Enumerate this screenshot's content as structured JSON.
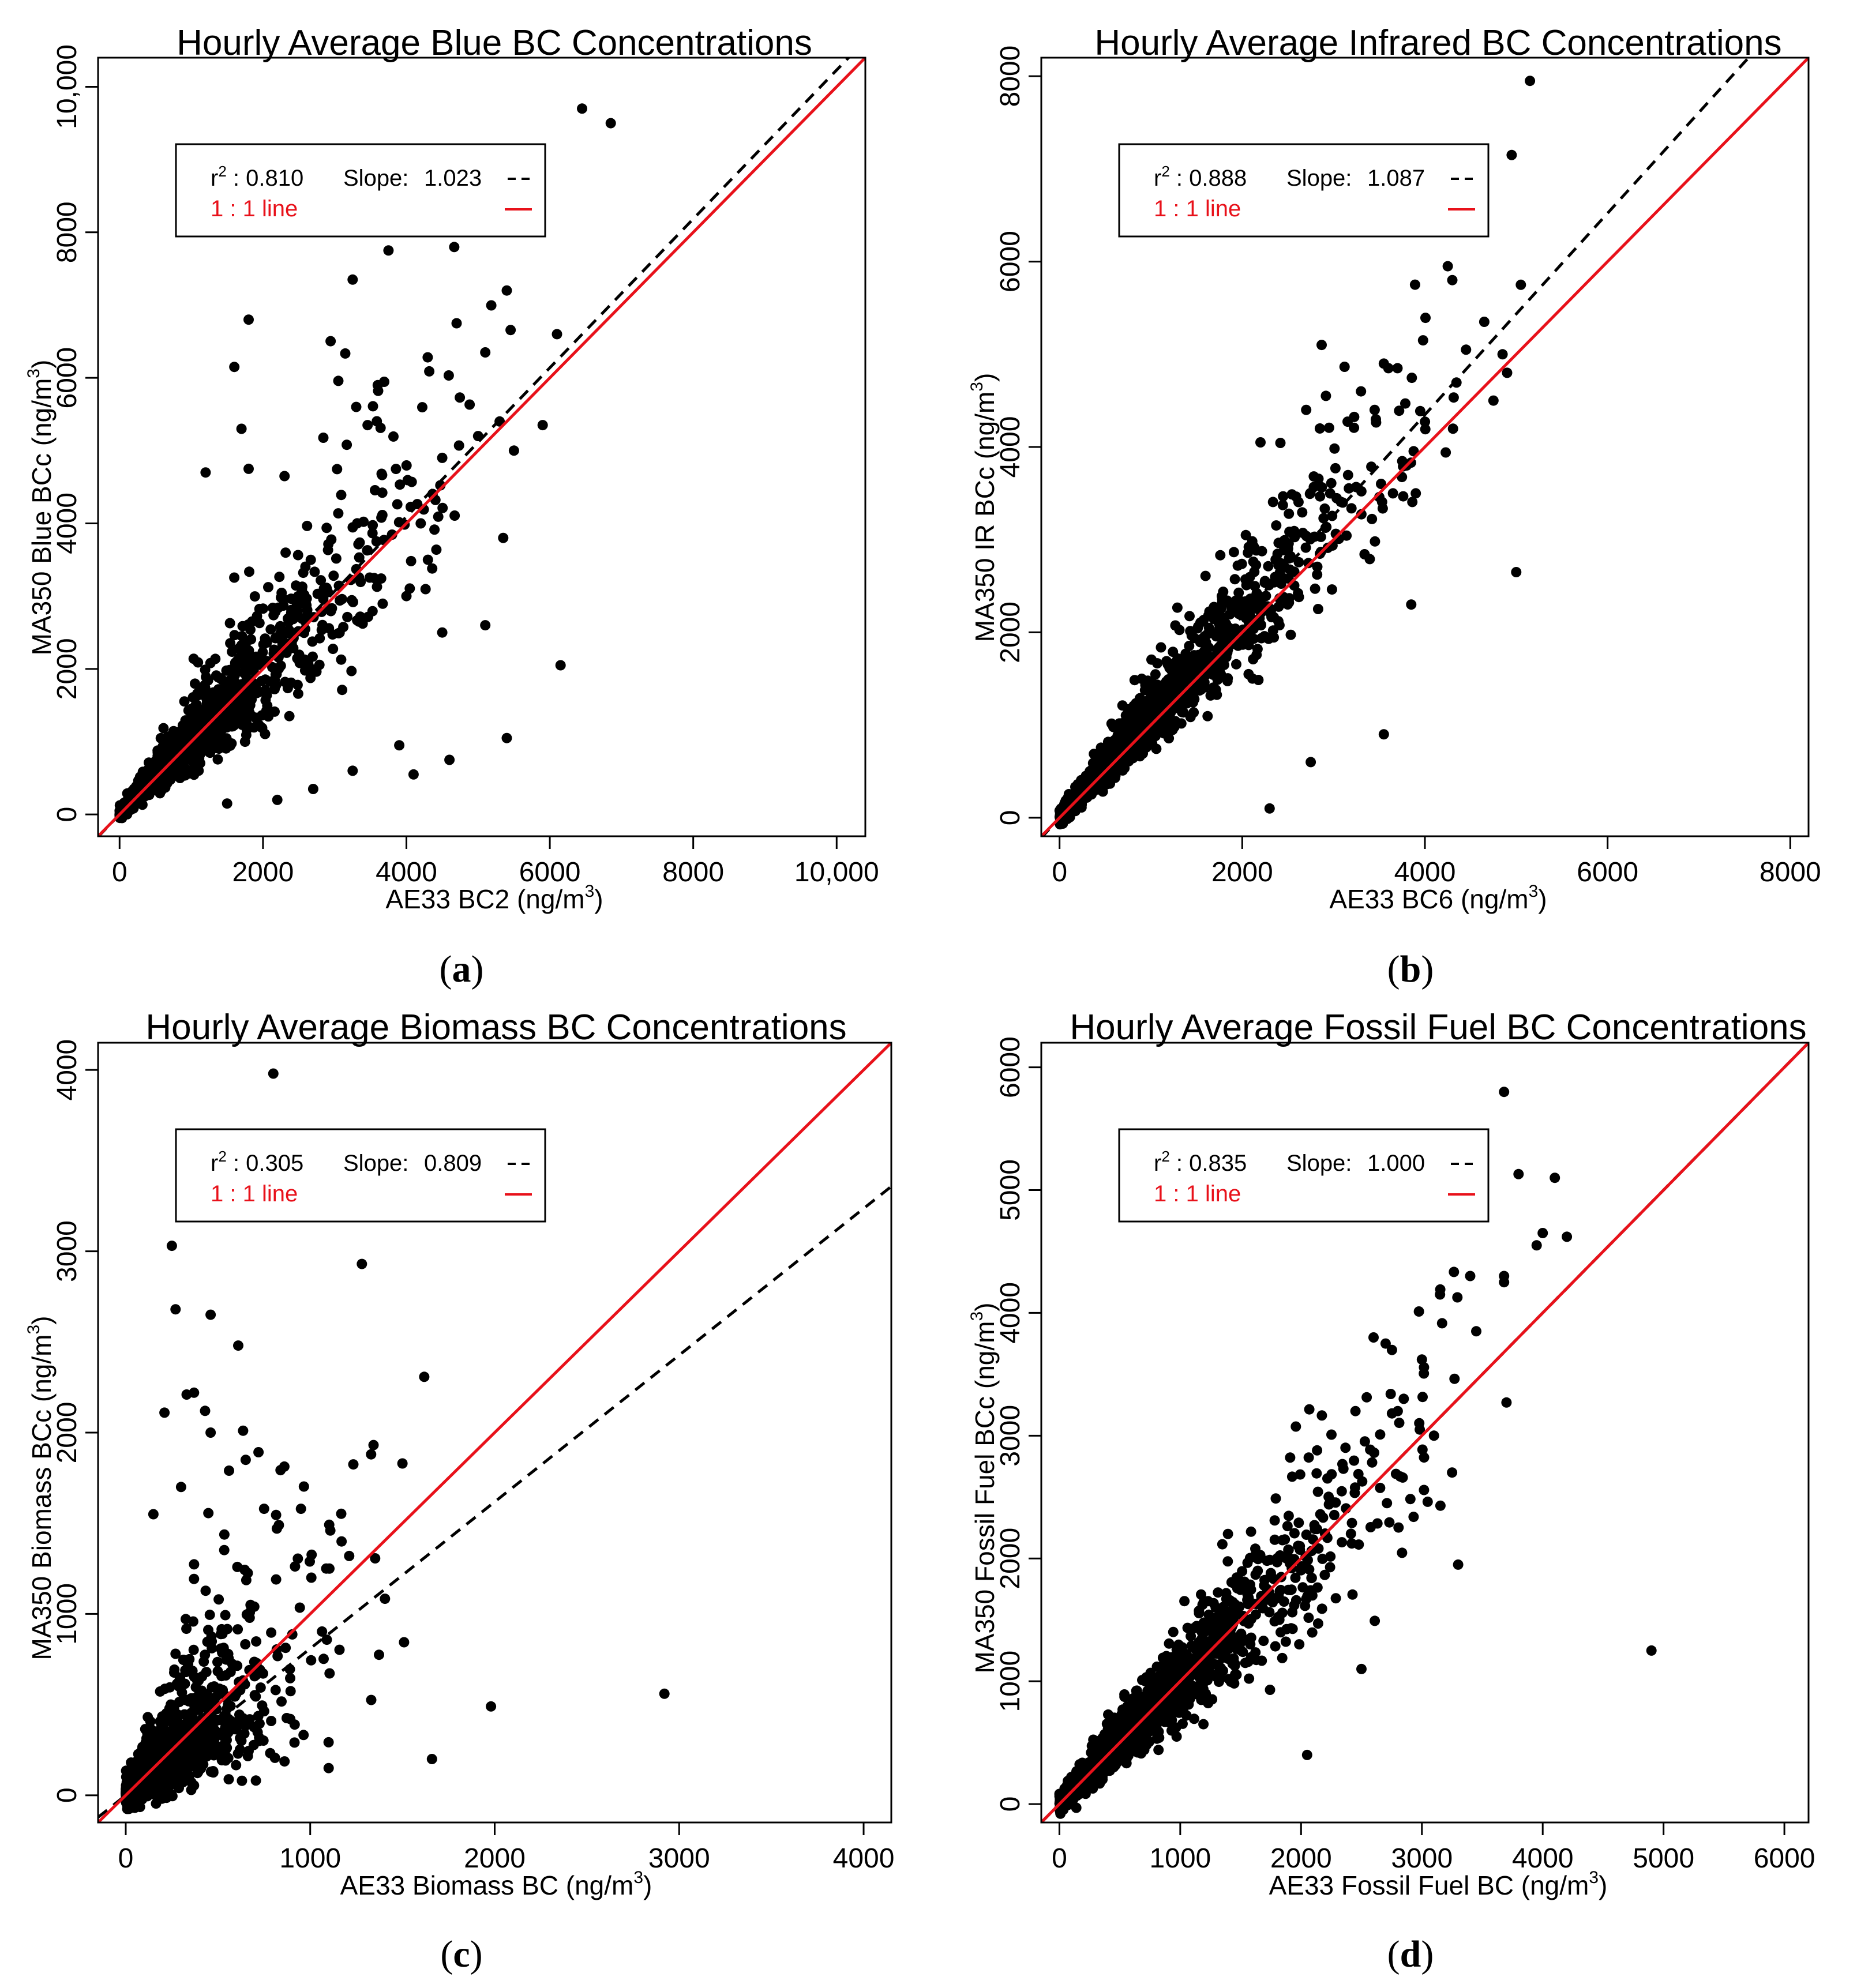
{
  "colors": {
    "points": "#000000",
    "fit_line": "#000000",
    "one_to_one": "#e8111a",
    "axis": "#000000"
  },
  "chart_data": [
    {
      "type": "scatter",
      "panel_label": "a",
      "title": "Hourly Average Blue BC Concentrations",
      "xlabel": "AE33 BC2 (ng/m",
      "ylabel": "MA350 Blue BCc (ng/m",
      "unit_sup": "3",
      "unit_close": ")",
      "xlim": [
        -300,
        10400
      ],
      "ylim": [
        -300,
        10400
      ],
      "xticks": [
        0,
        2000,
        4000,
        6000,
        8000,
        10000
      ],
      "xtick_labels": [
        "0",
        "2000",
        "4000",
        "6000",
        "8000",
        "10,000"
      ],
      "yticks": [
        0,
        2000,
        4000,
        6000,
        8000,
        10000
      ],
      "ytick_labels": [
        "0",
        "2000",
        "4000",
        "6000",
        "8000",
        "10,000"
      ],
      "legend": {
        "r2_prefix": "r",
        "r2_sup": "2",
        "r2_text": " : 0.810",
        "slope_label": "Slope:",
        "slope_value": "1.023",
        "line_label": "1 : 1 line",
        "position": "top-left"
      },
      "fit": {
        "slope": 1.023,
        "intercept": 0
      },
      "cloud": {
        "n": 1500,
        "x_scale": 1100,
        "sigma": 0.22,
        "seed": 11
      },
      "outliers": [
        [
          6450,
          9700
        ],
        [
          6850,
          9500
        ],
        [
          3750,
          7750
        ],
        [
          1800,
          6800
        ],
        [
          3250,
          7350
        ],
        [
          6100,
          6600
        ],
        [
          5400,
          7200
        ],
        [
          4700,
          6750
        ],
        [
          5100,
          6350
        ],
        [
          1600,
          6150
        ],
        [
          3600,
          5900
        ],
        [
          5000,
          5200
        ],
        [
          5300,
          5400
        ],
        [
          5900,
          5350
        ],
        [
          5500,
          5000
        ],
        [
          5350,
          3800
        ],
        [
          5100,
          2600
        ],
        [
          6150,
          2050
        ],
        [
          5400,
          1050
        ],
        [
          4600,
          750
        ],
        [
          4100,
          550
        ],
        [
          3900,
          950
        ],
        [
          3250,
          600
        ],
        [
          2700,
          350
        ],
        [
          4200,
          4000
        ],
        [
          4500,
          4900
        ],
        [
          2300,
          4650
        ],
        [
          1700,
          5300
        ],
        [
          3300,
          5600
        ],
        [
          4300,
          3500
        ],
        [
          1800,
          4750
        ],
        [
          1200,
          4700
        ],
        [
          4500,
          2500
        ],
        [
          4000,
          3000
        ],
        [
          1500,
          150
        ],
        [
          2200,
          200
        ]
      ]
    },
    {
      "type": "scatter",
      "panel_label": "b",
      "title": "Hourly Average Infrared BC Concentrations",
      "xlabel": "AE33 BC6 (ng/m",
      "ylabel": "MA350 IR BCc (ng/m",
      "unit_sup": "3",
      "unit_close": ")",
      "xlim": [
        -200,
        8200
      ],
      "ylim": [
        -200,
        8200
      ],
      "xticks": [
        0,
        2000,
        4000,
        6000,
        8000
      ],
      "xtick_labels": [
        "0",
        "2000",
        "4000",
        "6000",
        "8000"
      ],
      "yticks": [
        0,
        2000,
        4000,
        6000,
        8000
      ],
      "ytick_labels": [
        "0",
        "2000",
        "4000",
        "6000",
        "8000"
      ],
      "legend": {
        "r2_prefix": "r",
        "r2_sup": "2",
        "r2_text": " : 0.888",
        "slope_label": "Slope:",
        "slope_value": "1.087",
        "line_label": "1 : 1 line",
        "position": "top-left"
      },
      "fit": {
        "slope": 1.087,
        "intercept": 0
      },
      "cloud": {
        "n": 1700,
        "x_scale": 950,
        "sigma": 0.15,
        "seed": 23
      },
      "outliers": [
        [
          5150,
          7950
        ],
        [
          4950,
          7150
        ],
        [
          4250,
          5950
        ],
        [
          4300,
          5800
        ],
        [
          5050,
          5750
        ],
        [
          4650,
          5350
        ],
        [
          4850,
          5000
        ],
        [
          4450,
          5050
        ],
        [
          4900,
          4800
        ],
        [
          4750,
          4500
        ],
        [
          5000,
          2650
        ],
        [
          3550,
          900
        ],
        [
          3550,
          4900
        ],
        [
          3600,
          4850
        ],
        [
          3700,
          4850
        ],
        [
          3300,
          4600
        ],
        [
          3450,
          4400
        ],
        [
          2700,
          4400
        ],
        [
          3800,
          3800
        ],
        [
          3650,
          3500
        ],
        [
          3850,
          2300
        ],
        [
          2300,
          100
        ],
        [
          3100,
          3400
        ],
        [
          2850,
          4200
        ],
        [
          2200,
          4050
        ],
        [
          3900,
          3500
        ],
        [
          2750,
          600
        ]
      ]
    },
    {
      "type": "scatter",
      "panel_label": "c",
      "title": "Hourly Average Biomass BC Concentrations",
      "xlabel": "AE33 Biomass BC (ng/m",
      "ylabel": "MA350 Biomass BCc (ng/m",
      "unit_sup": "3",
      "unit_close": ")",
      "xlim": [
        -150,
        4150
      ],
      "ylim": [
        -150,
        4150
      ],
      "xticks": [
        0,
        1000,
        2000,
        3000,
        4000
      ],
      "xtick_labels": [
        "0",
        "1000",
        "2000",
        "3000",
        "4000"
      ],
      "yticks": [
        0,
        1000,
        2000,
        3000,
        4000
      ],
      "ytick_labels": [
        "0",
        "1000",
        "2000",
        "3000",
        "4000"
      ],
      "legend": {
        "r2_prefix": "r",
        "r2_sup": "2",
        "r2_text": " : 0.305",
        "slope_label": "Slope:",
        "slope_value": "0.809",
        "line_label": "1 : 1 line",
        "position": "top-left"
      },
      "fit": {
        "slope": 0.809,
        "intercept": 0
      },
      "cloud": {
        "n": 1500,
        "x_scale": 230,
        "sigma": 0.55,
        "seed": 37
      },
      "outliers": [
        [
          800,
          3980
        ],
        [
          630,
          3200
        ],
        [
          250,
          3030
        ],
        [
          1280,
          2930
        ],
        [
          270,
          2680
        ],
        [
          460,
          2650
        ],
        [
          610,
          2480
        ],
        [
          370,
          2220
        ],
        [
          330,
          2210
        ],
        [
          430,
          2120
        ],
        [
          210,
          2110
        ],
        [
          460,
          2000
        ],
        [
          560,
          1790
        ],
        [
          1330,
          1880
        ],
        [
          1500,
          1830
        ],
        [
          950,
          1580
        ],
        [
          750,
          1580
        ],
        [
          830,
          1490
        ],
        [
          1170,
          1400
        ],
        [
          1980,
          490
        ],
        [
          2920,
          560
        ],
        [
          1660,
          200
        ],
        [
          1100,
          150
        ],
        [
          300,
          1700
        ],
        [
          150,
          1550
        ]
      ]
    },
    {
      "type": "scatter",
      "panel_label": "d",
      "title": "Hourly Average Fossil Fuel BC Concentrations",
      "xlabel": "AE33 Fossil Fuel BC (ng/m",
      "ylabel": "MA350 Fossil Fuel BCc (ng/m",
      "unit_sup": "3",
      "unit_close": ")",
      "xlim": [
        -150,
        6200
      ],
      "ylim": [
        -150,
        6200
      ],
      "xticks": [
        0,
        1000,
        2000,
        3000,
        4000,
        5000,
        6000
      ],
      "xtick_labels": [
        "0",
        "1000",
        "2000",
        "3000",
        "4000",
        "5000",
        "6000"
      ],
      "yticks": [
        0,
        1000,
        2000,
        3000,
        4000,
        5000,
        6000
      ],
      "ytick_labels": [
        "0",
        "1000",
        "2000",
        "3000",
        "4000",
        "5000",
        "6000"
      ],
      "legend": {
        "r2_prefix": "r",
        "r2_sup": "2",
        "r2_text": " : 0.835",
        "slope_label": "Slope:",
        "slope_value": "1.000",
        "line_label": "1 : 1 line",
        "position": "top-left"
      },
      "fit": {
        "slope": 1.0,
        "intercept": 0
      },
      "cloud": {
        "n": 1700,
        "x_scale": 780,
        "sigma": 0.18,
        "seed": 53
      },
      "outliers": [
        [
          3680,
          5800
        ],
        [
          3800,
          5130
        ],
        [
          4100,
          5100
        ],
        [
          4000,
          4650
        ],
        [
          3950,
          4550
        ],
        [
          4200,
          4620
        ],
        [
          3680,
          4300
        ],
        [
          3680,
          4250
        ],
        [
          3400,
          4300
        ],
        [
          3450,
          3850
        ],
        [
          3150,
          4150
        ],
        [
          3700,
          3270
        ],
        [
          3300,
          1950
        ],
        [
          4900,
          1250
        ],
        [
          2600,
          3800
        ],
        [
          2700,
          3750
        ],
        [
          3000,
          3620
        ],
        [
          2850,
          3300
        ],
        [
          2800,
          3200
        ],
        [
          3250,
          2700
        ],
        [
          2450,
          3200
        ],
        [
          3100,
          3000
        ],
        [
          2500,
          1100
        ],
        [
          2050,
          400
        ]
      ]
    }
  ],
  "panels": [
    {
      "label_open": "(",
      "label": "a",
      "label_close": ")"
    },
    {
      "label_open": "(",
      "label": "b",
      "label_close": ")"
    },
    {
      "label_open": "(",
      "label": "c",
      "label_close": ")"
    },
    {
      "label_open": "(",
      "label": "d",
      "label_close": ")"
    }
  ]
}
